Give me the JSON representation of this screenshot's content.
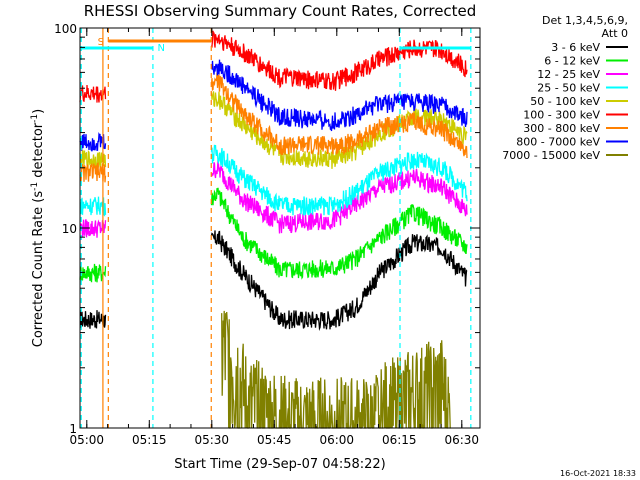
{
  "chart_data": {
    "type": "line",
    "title": "RHESSI Observing Summary Count Rates, Corrected",
    "xlabel": "Start Time (29-Sep-07 04:58:22)",
    "ylabel_main": "Corrected Count Rate (s",
    "ylabel_exp1": "-1",
    "ylabel_mid": " detector",
    "ylabel_exp2": "-1",
    "ylabel_end": ")",
    "y_scale": "log",
    "ylim": [
      1,
      100
    ],
    "y_ticks": [
      {
        "value": 1,
        "label": "1"
      },
      {
        "value": 10,
        "label": "10"
      },
      {
        "value": 100,
        "label": "100"
      }
    ],
    "xlim_minutes": [
      0,
      96
    ],
    "x_ticks": [
      {
        "minute": 1.63,
        "label": "05:00"
      },
      {
        "minute": 16.63,
        "label": "05:15"
      },
      {
        "minute": 31.63,
        "label": "05:30"
      },
      {
        "minute": 46.63,
        "label": "05:45"
      },
      {
        "minute": 61.63,
        "label": "06:00"
      },
      {
        "minute": 76.63,
        "label": "06:15"
      },
      {
        "minute": 91.63,
        "label": "06:30"
      }
    ],
    "legend_header": [
      "Det 1,3,4,5,6,9,",
      "Att 0"
    ],
    "legend_position": "right",
    "series": [
      {
        "name": "3 - 6 keV",
        "color": "#000000",
        "points": [
          [
            0,
            3.5
          ],
          [
            6,
            3.5
          ],
          [
            33,
            9
          ],
          [
            39,
            6
          ],
          [
            48,
            3.5
          ],
          [
            61,
            3.5
          ],
          [
            66,
            4
          ],
          [
            72,
            6
          ],
          [
            80,
            8.5
          ],
          [
            87,
            8
          ],
          [
            93,
            5.5
          ]
        ]
      },
      {
        "name": "6 - 12 keV",
        "color": "#00ee00",
        "points": [
          [
            0,
            6
          ],
          [
            6,
            6
          ],
          [
            33,
            15
          ],
          [
            39,
            9
          ],
          [
            48,
            6.2
          ],
          [
            61,
            6.3
          ],
          [
            66,
            7
          ],
          [
            72,
            9
          ],
          [
            80,
            12
          ],
          [
            87,
            10
          ],
          [
            93,
            8
          ]
        ]
      },
      {
        "name": "12 - 25 keV",
        "color": "#ff00ff",
        "points": [
          [
            0,
            10
          ],
          [
            6,
            10
          ],
          [
            33,
            20
          ],
          [
            39,
            14
          ],
          [
            48,
            10.5
          ],
          [
            61,
            11
          ],
          [
            66,
            13
          ],
          [
            72,
            16
          ],
          [
            80,
            18
          ],
          [
            87,
            16
          ],
          [
            93,
            12
          ]
        ]
      },
      {
        "name": "25 - 50 keV",
        "color": "#00ffff",
        "points": [
          [
            0,
            13
          ],
          [
            6,
            13
          ],
          [
            33,
            24
          ],
          [
            39,
            18
          ],
          [
            48,
            13
          ],
          [
            61,
            13
          ],
          [
            66,
            15
          ],
          [
            72,
            19
          ],
          [
            80,
            22
          ],
          [
            87,
            20
          ],
          [
            93,
            15
          ]
        ]
      },
      {
        "name": "50 - 100 keV",
        "color": "#cccc00",
        "points": [
          [
            0,
            22
          ],
          [
            6,
            22
          ],
          [
            33,
            45
          ],
          [
            39,
            33
          ],
          [
            48,
            23
          ],
          [
            61,
            22
          ],
          [
            66,
            24
          ],
          [
            72,
            30
          ],
          [
            80,
            36
          ],
          [
            87,
            35
          ],
          [
            93,
            28
          ]
        ]
      },
      {
        "name": "100 - 300 keV",
        "color": "#ff0000",
        "points": [
          [
            0,
            47
          ],
          [
            6,
            47
          ],
          [
            33,
            90
          ],
          [
            39,
            76
          ],
          [
            48,
            57
          ],
          [
            61,
            54
          ],
          [
            66,
            60
          ],
          [
            72,
            70
          ],
          [
            80,
            80
          ],
          [
            87,
            78
          ],
          [
            93,
            62
          ]
        ]
      },
      {
        "name": "300 - 800 keV",
        "color": "#ff8000",
        "points": [
          [
            0,
            19
          ],
          [
            6,
            19
          ],
          [
            33,
            55
          ],
          [
            39,
            38
          ],
          [
            48,
            26
          ],
          [
            61,
            26
          ],
          [
            66,
            27
          ],
          [
            72,
            32
          ],
          [
            80,
            34
          ],
          [
            87,
            31
          ],
          [
            93,
            24
          ]
        ]
      },
      {
        "name": "800 - 7000 keV",
        "color": "#0000ff",
        "points": [
          [
            0,
            27
          ],
          [
            6,
            27
          ],
          [
            33,
            65
          ],
          [
            39,
            52
          ],
          [
            48,
            36
          ],
          [
            61,
            34
          ],
          [
            66,
            37
          ],
          [
            72,
            42
          ],
          [
            80,
            43
          ],
          [
            87,
            41
          ],
          [
            93,
            35
          ]
        ]
      },
      {
        "name": "7000 - 15000 keV",
        "color": "#808000",
        "points": [
          [
            34,
            2.6
          ],
          [
            37,
            2.2
          ],
          [
            40,
            1.3
          ],
          [
            50,
            1.0
          ],
          [
            70,
            1.0
          ],
          [
            73,
            1.2
          ],
          [
            80,
            1.4
          ],
          [
            87,
            1.6
          ],
          [
            89,
            1.0
          ]
        ]
      }
    ],
    "flags": [
      {
        "label": "S",
        "color": "#ff8000"
      },
      {
        "label": "N",
        "color": "#00ffff"
      }
    ],
    "timestamp": "16-Oct-2021 18:33"
  }
}
